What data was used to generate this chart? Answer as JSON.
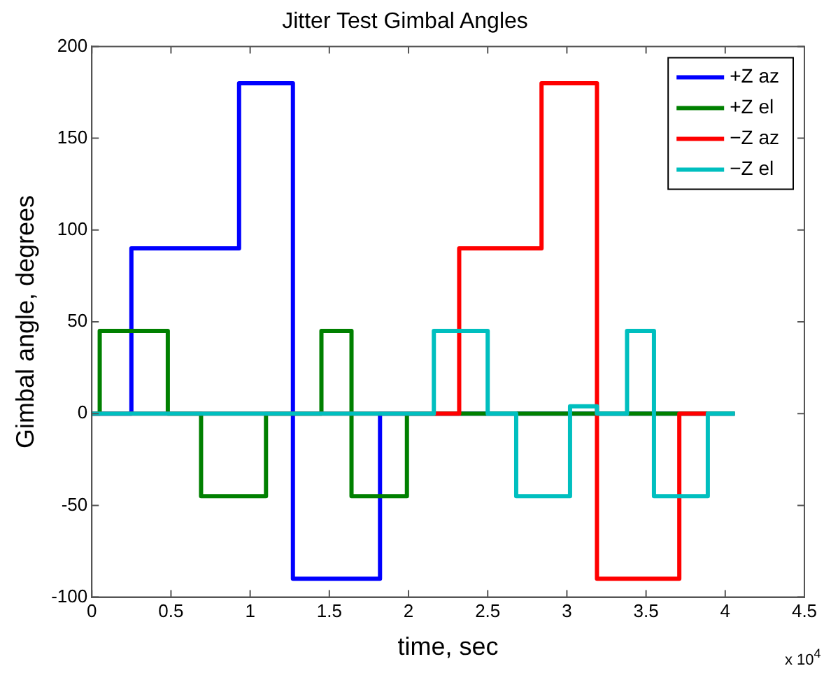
{
  "chart_data": {
    "type": "step",
    "title": "Jitter Test Gimbal Angles",
    "xlabel": "time, sec",
    "ylabel": "Gimbal angle, degrees",
    "annotations": [
      "x 10$^{4}$"
    ],
    "xlim": [
      0,
      4.5
    ],
    "xticks": [
      0,
      0.5,
      1,
      1.5,
      2,
      2.5,
      3,
      3.5,
      4,
      4.5
    ],
    "ylim": [
      -100,
      200
    ],
    "yticks": [
      -100,
      -50,
      0,
      50,
      100,
      150,
      200
    ],
    "grid": false,
    "legend": "top right",
    "marker": "none",
    "line_style": "solid",
    "series": [
      {
        "name": "+Z az",
        "color": "#0000ff",
        "x": [
          0,
          0.25,
          0.93,
          1.27,
          1.82,
          4.06
        ],
        "values": [
          0,
          90,
          180,
          -90,
          0,
          0
        ]
      },
      {
        "name": "+Z el",
        "color": "#008000",
        "x": [
          0,
          0.05,
          0.48,
          0.69,
          1.1,
          1.45,
          1.64,
          1.99,
          4.06
        ],
        "values": [
          0,
          45,
          0,
          -45,
          0,
          45,
          -45,
          0,
          0
        ]
      },
      {
        "name": "−Z az",
        "color": "#ff0000",
        "x": [
          0,
          2.32,
          2.84,
          3.19,
          3.71,
          3.88
        ],
        "values": [
          0,
          90,
          180,
          -90,
          0,
          0
        ]
      },
      {
        "name": "−Z el",
        "color": "#00bfbf",
        "x": [
          0,
          2.16,
          2.5,
          2.68,
          3.02,
          3.19,
          3.38,
          3.55,
          3.89,
          4.06
        ],
        "values": [
          0,
          45,
          0,
          -45,
          4,
          0,
          45,
          -45,
          0,
          0
        ]
      }
    ]
  }
}
